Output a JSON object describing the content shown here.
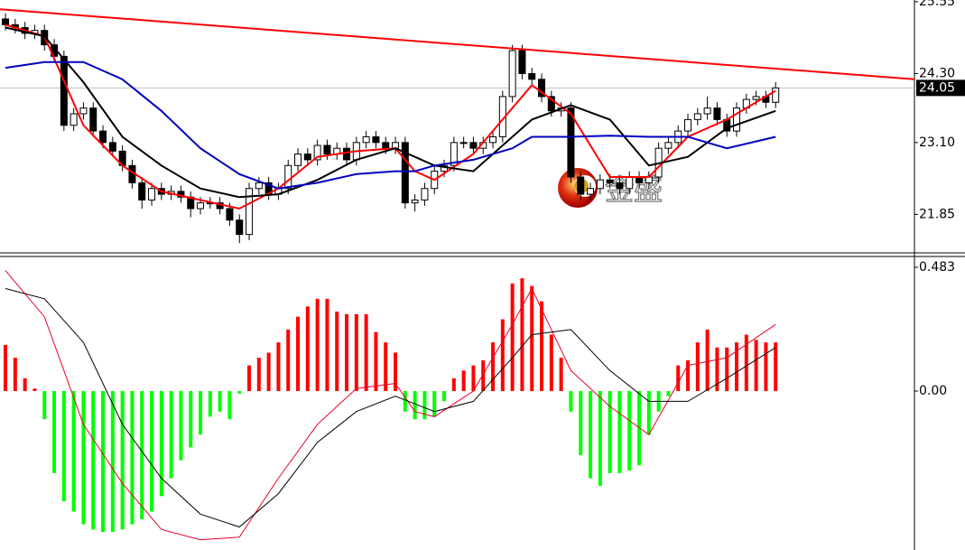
{
  "chart_data": [
    {
      "type": "candlestick",
      "xlim": [
        -0.56,
        93.24
      ],
      "ylim": [
        21.18,
        25.58
      ],
      "yticks": [
        25.55,
        {
          "value": 24.3,
          "label": "24.30"
        },
        {
          "value": 23.1,
          "label": "23.10"
        },
        21.85
      ],
      "last_price": 24.05,
      "last_price_color": "#c0c0c0",
      "up_color": "#ffffff",
      "down_color": "#000000",
      "open": [
        25.25,
        25.15,
        25.1,
        25.0,
        25.05,
        24.8,
        24.6,
        23.4,
        23.6,
        23.7,
        23.3,
        23.1,
        22.95,
        22.7,
        22.4,
        22.1,
        22.3,
        22.2,
        22.25,
        22.15,
        21.95,
        22.05,
        22.05,
        21.95,
        21.75,
        21.5,
        22.3,
        22.4,
        22.2,
        22.3,
        22.7,
        22.9,
        22.8,
        23.05,
        22.9,
        23.0,
        22.8,
        23.1,
        23.2,
        23.1,
        23.0,
        23.1,
        22.05,
        22.1,
        22.3,
        22.6,
        22.7,
        23.1,
        23.1,
        23.0,
        23.1,
        23.2,
        23.9,
        24.7,
        24.3,
        24.2,
        23.9,
        23.65,
        23.7,
        22.5,
        22.2,
        22.3,
        22.45,
        22.4,
        22.3,
        22.5,
        22.4,
        22.5,
        23.0,
        23.1,
        23.3,
        23.5,
        23.6,
        23.7,
        23.5,
        23.3,
        23.7,
        23.85,
        23.9,
        23.8
      ],
      "high": [
        25.35,
        25.25,
        25.2,
        25.15,
        25.15,
        24.9,
        24.7,
        23.7,
        23.8,
        23.8,
        23.4,
        23.2,
        23.05,
        22.8,
        22.5,
        22.4,
        22.4,
        22.35,
        22.35,
        22.25,
        22.15,
        22.15,
        22.15,
        22.05,
        21.85,
        22.4,
        22.5,
        22.5,
        22.4,
        22.8,
        23.0,
        23.0,
        23.15,
        23.15,
        23.1,
        23.1,
        23.2,
        23.3,
        23.3,
        23.2,
        23.2,
        23.2,
        22.2,
        22.4,
        22.7,
        22.8,
        23.2,
        23.2,
        23.2,
        23.2,
        23.3,
        24.0,
        24.8,
        24.8,
        24.4,
        24.3,
        24.0,
        23.8,
        23.8,
        22.6,
        22.4,
        22.55,
        22.55,
        22.5,
        22.6,
        22.6,
        22.6,
        23.1,
        23.2,
        23.4,
        23.6,
        23.7,
        23.9,
        23.8,
        23.6,
        23.8,
        23.95,
        24.0,
        24.0,
        24.15
      ],
      "low": [
        25.05,
        25.0,
        24.9,
        24.9,
        24.7,
        24.5,
        23.3,
        23.3,
        23.5,
        23.2,
        23.0,
        22.85,
        22.6,
        22.3,
        21.95,
        22.0,
        22.1,
        22.1,
        22.05,
        21.8,
        21.85,
        21.95,
        21.85,
        21.65,
        21.35,
        21.4,
        22.2,
        22.1,
        22.1,
        22.2,
        22.6,
        22.7,
        22.7,
        22.8,
        22.8,
        22.7,
        22.7,
        23.0,
        23.0,
        22.9,
        22.9,
        21.95,
        21.9,
        22.0,
        22.2,
        22.5,
        22.6,
        23.0,
        22.9,
        22.9,
        23.0,
        23.1,
        23.8,
        24.2,
        24.1,
        23.8,
        23.55,
        23.55,
        22.4,
        22.1,
        22.1,
        22.2,
        22.3,
        22.2,
        22.2,
        22.3,
        22.3,
        22.4,
        22.9,
        23.0,
        23.2,
        23.4,
        23.5,
        23.4,
        23.2,
        23.2,
        23.6,
        23.75,
        23.7,
        23.7
      ],
      "close": [
        25.15,
        25.1,
        25.0,
        25.05,
        24.8,
        24.6,
        23.4,
        23.6,
        23.7,
        23.3,
        23.1,
        22.95,
        22.7,
        22.4,
        22.1,
        22.3,
        22.2,
        22.25,
        22.15,
        21.95,
        22.05,
        22.05,
        21.95,
        21.75,
        21.5,
        22.3,
        22.4,
        22.2,
        22.3,
        22.7,
        22.9,
        22.8,
        23.05,
        22.9,
        23.0,
        22.8,
        23.1,
        23.2,
        23.1,
        23.0,
        23.1,
        22.05,
        22.1,
        22.3,
        22.6,
        22.7,
        23.1,
        23.1,
        23.0,
        23.1,
        23.2,
        23.9,
        24.7,
        24.3,
        24.2,
        23.9,
        23.65,
        23.7,
        22.5,
        22.2,
        22.3,
        22.45,
        22.4,
        22.3,
        22.5,
        22.4,
        22.5,
        23.0,
        23.1,
        23.3,
        23.5,
        23.6,
        23.7,
        23.5,
        23.3,
        23.7,
        23.85,
        23.9,
        23.8,
        24.05
      ],
      "series": [
        {
          "color": "#ff0000",
          "x": [
            0,
            4,
            8,
            12,
            16,
            20,
            24,
            28,
            32,
            36,
            40,
            42,
            44,
            48,
            52,
            54,
            58,
            62,
            66,
            70,
            74,
            79
          ],
          "values": [
            25.15,
            24.95,
            23.4,
            22.7,
            22.25,
            22.1,
            21.95,
            22.3,
            22.85,
            22.95,
            23.0,
            22.6,
            22.45,
            22.9,
            23.7,
            24.1,
            23.6,
            22.5,
            22.5,
            23.2,
            23.5,
            24.0
          ]
        },
        {
          "color": "#000000",
          "x": [
            0,
            4,
            8,
            12,
            16,
            20,
            24,
            28,
            32,
            36,
            40,
            42,
            44,
            48,
            52,
            54,
            58,
            62,
            66,
            70,
            74,
            79
          ],
          "values": [
            25.1,
            24.95,
            24.15,
            23.2,
            22.7,
            22.3,
            22.15,
            22.2,
            22.45,
            22.8,
            23.0,
            22.85,
            22.7,
            22.6,
            23.2,
            23.5,
            23.75,
            23.5,
            22.7,
            22.85,
            23.35,
            23.65
          ]
        },
        {
          "color": "#0000c0",
          "x": [
            0,
            4,
            8,
            12,
            16,
            20,
            24,
            28,
            32,
            36,
            40,
            42,
            44,
            48,
            52,
            54,
            58,
            62,
            66,
            70,
            74,
            79
          ],
          "values": [
            24.4,
            24.5,
            24.5,
            24.2,
            23.65,
            23.0,
            22.55,
            22.3,
            22.4,
            22.55,
            22.6,
            22.6,
            22.7,
            22.8,
            23.0,
            23.2,
            23.2,
            23.22,
            23.2,
            23.2,
            23.0,
            23.2
          ]
        }
      ],
      "trendline": {
        "color": "#ff0000",
        "x": [
          -0.56,
          93.24
        ],
        "values": [
          25.42,
          24.2
        ]
      },
      "watermark": "金盛"
    },
    {
      "type": "macd",
      "xlim": [
        -0.56,
        93.24
      ],
      "ylim": [
        -0.62,
        0.525
      ],
      "yticks": [
        0.483,
        {
          "value": 0,
          "label": "0.00"
        }
      ],
      "positive_color": "#ff0000",
      "negative_color": "#00ff00",
      "values": [
        0.18,
        0.13,
        0.05,
        0.01,
        -0.11,
        -0.32,
        -0.43,
        -0.47,
        -0.52,
        -0.54,
        -0.55,
        -0.55,
        -0.54,
        -0.52,
        -0.5,
        -0.47,
        -0.41,
        -0.34,
        -0.27,
        -0.22,
        -0.17,
        -0.1,
        -0.08,
        -0.11,
        -0.01,
        0.1,
        0.13,
        0.15,
        0.19,
        0.24,
        0.29,
        0.33,
        0.36,
        0.36,
        0.31,
        0.3,
        0.3,
        0.3,
        0.23,
        0.19,
        0.15,
        -0.08,
        -0.11,
        -0.11,
        -0.1,
        -0.04,
        0.05,
        0.08,
        0.1,
        0.12,
        0.19,
        0.28,
        0.42,
        0.44,
        0.41,
        0.35,
        0.22,
        0.13,
        -0.08,
        -0.25,
        -0.34,
        -0.37,
        -0.32,
        -0.32,
        -0.31,
        -0.29,
        -0.17,
        -0.08,
        -0.02,
        0.1,
        0.12,
        0.19,
        0.24,
        0.17,
        0.17,
        0.19,
        0.22,
        0.2,
        0.19,
        0.19
      ],
      "series": [
        {
          "color": "#e8002a",
          "x": [
            0,
            4,
            8,
            12,
            16,
            20,
            24,
            28,
            32,
            36,
            40,
            42,
            44,
            48,
            52,
            54,
            58,
            62,
            66,
            70,
            74,
            79
          ],
          "values": [
            0.47,
            0.29,
            -0.13,
            -0.36,
            -0.54,
            -0.58,
            -0.57,
            -0.34,
            -0.13,
            0.01,
            0.03,
            -0.08,
            -0.1,
            0.0,
            0.26,
            0.4,
            0.08,
            -0.06,
            -0.17,
            0.1,
            0.13,
            0.26
          ]
        },
        {
          "color": "#000000",
          "x": [
            0,
            4,
            8,
            12,
            16,
            20,
            24,
            28,
            32,
            36,
            40,
            42,
            44,
            48,
            52,
            54,
            58,
            62,
            66,
            70,
            74,
            79
          ],
          "values": [
            0.4,
            0.36,
            0.19,
            -0.13,
            -0.34,
            -0.48,
            -0.53,
            -0.4,
            -0.2,
            -0.08,
            -0.02,
            -0.05,
            -0.08,
            -0.04,
            0.13,
            0.22,
            0.24,
            0.08,
            -0.04,
            -0.04,
            0.05,
            0.17
          ]
        }
      ]
    }
  ]
}
